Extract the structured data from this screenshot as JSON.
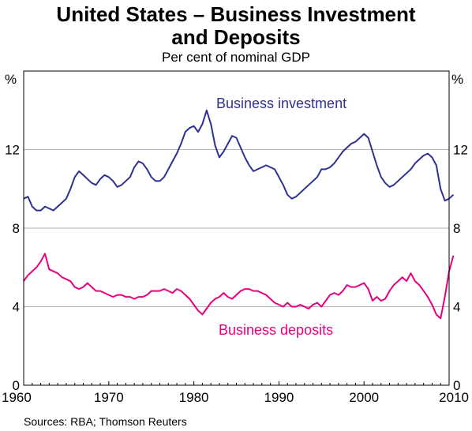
{
  "title_line1": "United States – Business Investment",
  "title_line2": "and Deposits",
  "subtitle": "Per cent of nominal GDP",
  "source": "Sources: RBA; Thomson Reuters",
  "colors": {
    "business_investment": "#2e3192",
    "business_deposits": "#e6007e",
    "grid": "#b3b3b3",
    "frame": "#000000"
  },
  "chart_data": {
    "type": "line",
    "title": "United States – Business Investment and Deposits",
    "subtitle": "Per cent of nominal GDP",
    "xlim": [
      1960,
      2010
    ],
    "ylim": [
      0,
      16
    ],
    "x_ticks": [
      "1960",
      "1970",
      "1980",
      "1990",
      "2000",
      "2010"
    ],
    "y_ticks": [
      "0",
      "4",
      "8",
      "12"
    ],
    "y_unit": "%",
    "grid": true,
    "series": [
      {
        "name": "Business investment",
        "points": [
          [
            1960,
            9.5
          ],
          [
            1960.5,
            9.6
          ],
          [
            1961,
            9.1
          ],
          [
            1961.5,
            8.9
          ],
          [
            1962,
            8.9
          ],
          [
            1962.5,
            9.1
          ],
          [
            1963,
            9.0
          ],
          [
            1963.5,
            8.9
          ],
          [
            1964,
            9.1
          ],
          [
            1964.5,
            9.3
          ],
          [
            1965,
            9.5
          ],
          [
            1965.5,
            10.0
          ],
          [
            1966,
            10.6
          ],
          [
            1966.5,
            10.9
          ],
          [
            1967,
            10.7
          ],
          [
            1967.5,
            10.5
          ],
          [
            1968,
            10.3
          ],
          [
            1968.5,
            10.2
          ],
          [
            1969,
            10.5
          ],
          [
            1969.5,
            10.7
          ],
          [
            1970,
            10.6
          ],
          [
            1970.5,
            10.4
          ],
          [
            1971,
            10.1
          ],
          [
            1971.5,
            10.2
          ],
          [
            1972,
            10.4
          ],
          [
            1972.5,
            10.6
          ],
          [
            1973,
            11.1
          ],
          [
            1973.5,
            11.4
          ],
          [
            1974,
            11.3
          ],
          [
            1974.5,
            11.0
          ],
          [
            1975,
            10.6
          ],
          [
            1975.5,
            10.4
          ],
          [
            1976,
            10.4
          ],
          [
            1976.5,
            10.6
          ],
          [
            1977,
            11.0
          ],
          [
            1977.5,
            11.4
          ],
          [
            1978,
            11.8
          ],
          [
            1978.5,
            12.3
          ],
          [
            1979,
            12.9
          ],
          [
            1979.5,
            13.1
          ],
          [
            1980,
            13.2
          ],
          [
            1980.5,
            12.9
          ],
          [
            1981,
            13.3
          ],
          [
            1981.5,
            14.0
          ],
          [
            1982,
            13.3
          ],
          [
            1982.5,
            12.2
          ],
          [
            1983,
            11.6
          ],
          [
            1983.5,
            11.9
          ],
          [
            1984,
            12.3
          ],
          [
            1984.5,
            12.7
          ],
          [
            1985,
            12.6
          ],
          [
            1985.5,
            12.1
          ],
          [
            1986,
            11.6
          ],
          [
            1986.5,
            11.2
          ],
          [
            1987,
            10.9
          ],
          [
            1987.5,
            11.0
          ],
          [
            1988,
            11.1
          ],
          [
            1988.5,
            11.2
          ],
          [
            1989,
            11.1
          ],
          [
            1989.5,
            11.0
          ],
          [
            1990,
            10.6
          ],
          [
            1990.5,
            10.2
          ],
          [
            1991,
            9.7
          ],
          [
            1991.5,
            9.5
          ],
          [
            1992,
            9.6
          ],
          [
            1992.5,
            9.8
          ],
          [
            1993,
            10.0
          ],
          [
            1993.5,
            10.2
          ],
          [
            1994,
            10.4
          ],
          [
            1994.5,
            10.6
          ],
          [
            1995,
            11.0
          ],
          [
            1995.5,
            11.0
          ],
          [
            1996,
            11.1
          ],
          [
            1996.5,
            11.3
          ],
          [
            1997,
            11.6
          ],
          [
            1997.5,
            11.9
          ],
          [
            1998,
            12.1
          ],
          [
            1998.5,
            12.3
          ],
          [
            1999,
            12.4
          ],
          [
            1999.5,
            12.6
          ],
          [
            2000,
            12.8
          ],
          [
            2000.5,
            12.6
          ],
          [
            2001,
            11.9
          ],
          [
            2001.5,
            11.2
          ],
          [
            2002,
            10.6
          ],
          [
            2002.5,
            10.3
          ],
          [
            2003,
            10.1
          ],
          [
            2003.5,
            10.2
          ],
          [
            2004,
            10.4
          ],
          [
            2004.5,
            10.6
          ],
          [
            2005,
            10.8
          ],
          [
            2005.5,
            11.0
          ],
          [
            2006,
            11.3
          ],
          [
            2006.5,
            11.5
          ],
          [
            2007,
            11.7
          ],
          [
            2007.5,
            11.8
          ],
          [
            2008,
            11.6
          ],
          [
            2008.5,
            11.2
          ],
          [
            2009,
            10.0
          ],
          [
            2009.5,
            9.4
          ],
          [
            2010,
            9.5
          ],
          [
            2010.5,
            9.7
          ]
        ]
      },
      {
        "name": "Business deposits",
        "points": [
          [
            1960,
            5.3
          ],
          [
            1960.5,
            5.6
          ],
          [
            1961,
            5.8
          ],
          [
            1961.5,
            6.0
          ],
          [
            1962,
            6.3
          ],
          [
            1962.5,
            6.7
          ],
          [
            1963,
            5.9
          ],
          [
            1963.5,
            5.8
          ],
          [
            1964,
            5.7
          ],
          [
            1964.5,
            5.5
          ],
          [
            1965,
            5.4
          ],
          [
            1965.5,
            5.3
          ],
          [
            1966,
            5.0
          ],
          [
            1966.5,
            4.9
          ],
          [
            1967,
            5.0
          ],
          [
            1967.5,
            5.2
          ],
          [
            1968,
            5.0
          ],
          [
            1968.5,
            4.8
          ],
          [
            1969,
            4.8
          ],
          [
            1969.5,
            4.7
          ],
          [
            1970,
            4.6
          ],
          [
            1970.5,
            4.5
          ],
          [
            1971,
            4.6
          ],
          [
            1971.5,
            4.6
          ],
          [
            1972,
            4.5
          ],
          [
            1972.5,
            4.5
          ],
          [
            1973,
            4.4
          ],
          [
            1973.5,
            4.5
          ],
          [
            1974,
            4.5
          ],
          [
            1974.5,
            4.6
          ],
          [
            1975,
            4.8
          ],
          [
            1975.5,
            4.8
          ],
          [
            1976,
            4.8
          ],
          [
            1976.5,
            4.9
          ],
          [
            1977,
            4.8
          ],
          [
            1977.5,
            4.7
          ],
          [
            1978,
            4.9
          ],
          [
            1978.5,
            4.8
          ],
          [
            1979,
            4.6
          ],
          [
            1979.5,
            4.4
          ],
          [
            1980,
            4.1
          ],
          [
            1980.5,
            3.8
          ],
          [
            1981,
            3.6
          ],
          [
            1981.5,
            3.9
          ],
          [
            1982,
            4.2
          ],
          [
            1982.5,
            4.4
          ],
          [
            1983,
            4.5
          ],
          [
            1983.5,
            4.7
          ],
          [
            1984,
            4.5
          ],
          [
            1984.5,
            4.4
          ],
          [
            1985,
            4.6
          ],
          [
            1985.5,
            4.8
          ],
          [
            1986,
            4.9
          ],
          [
            1986.5,
            4.9
          ],
          [
            1987,
            4.8
          ],
          [
            1987.5,
            4.8
          ],
          [
            1988,
            4.7
          ],
          [
            1988.5,
            4.6
          ],
          [
            1989,
            4.4
          ],
          [
            1989.5,
            4.2
          ],
          [
            1990,
            4.1
          ],
          [
            1990.5,
            4.0
          ],
          [
            1991,
            4.2
          ],
          [
            1991.5,
            4.0
          ],
          [
            1992,
            4.0
          ],
          [
            1992.5,
            4.1
          ],
          [
            1993,
            4.0
          ],
          [
            1993.5,
            3.9
          ],
          [
            1994,
            4.1
          ],
          [
            1994.5,
            4.2
          ],
          [
            1995,
            4.0
          ],
          [
            1995.5,
            4.3
          ],
          [
            1996,
            4.6
          ],
          [
            1996.5,
            4.7
          ],
          [
            1997,
            4.6
          ],
          [
            1997.5,
            4.8
          ],
          [
            1998,
            5.1
          ],
          [
            1998.5,
            5.0
          ],
          [
            1999,
            5.0
          ],
          [
            1999.5,
            5.1
          ],
          [
            2000,
            5.2
          ],
          [
            2000.5,
            4.9
          ],
          [
            2001,
            4.3
          ],
          [
            2001.5,
            4.5
          ],
          [
            2002,
            4.3
          ],
          [
            2002.5,
            4.4
          ],
          [
            2003,
            4.8
          ],
          [
            2003.5,
            5.1
          ],
          [
            2004,
            5.3
          ],
          [
            2004.5,
            5.5
          ],
          [
            2005,
            5.3
          ],
          [
            2005.5,
            5.7
          ],
          [
            2006,
            5.3
          ],
          [
            2006.5,
            5.1
          ],
          [
            2007,
            4.8
          ],
          [
            2007.5,
            4.5
          ],
          [
            2008,
            4.1
          ],
          [
            2008.5,
            3.6
          ],
          [
            2009,
            3.4
          ],
          [
            2009.5,
            4.5
          ],
          [
            2010,
            5.8
          ],
          [
            2010.5,
            6.6
          ]
        ]
      }
    ]
  }
}
